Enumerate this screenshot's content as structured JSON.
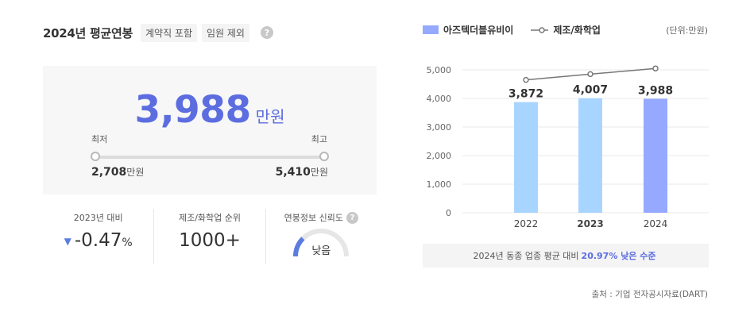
{
  "header": {
    "title": "2024년 평균연봉",
    "tags": [
      "계약직 포함",
      "임원 제외"
    ],
    "help": "?"
  },
  "salary": {
    "average": "3,988",
    "unit": "만원",
    "min_label": "최저",
    "max_label": "최고",
    "min_value": "2,708",
    "max_value": "5,410"
  },
  "stats": {
    "change_label": "2023년 대비",
    "change_value": "-0.47",
    "change_unit": "%",
    "rank_label": "제조/화학업 순위",
    "rank_value": "1000+",
    "reliability_label": "연봉정보 신뢰도",
    "reliability_value": "낮음",
    "reliability_level": 0.25
  },
  "legend": {
    "company": "아즈텍더블유비이",
    "industry": "제조/화학업",
    "unit_note": "(단위:만원)"
  },
  "chart_data": {
    "type": "bar",
    "categories": [
      "2022",
      "2023",
      "2024"
    ],
    "series": [
      {
        "name": "아즈텍더블유비이",
        "values": [
          3872,
          4007,
          3988
        ],
        "labels": [
          "3,872",
          "4,007",
          "3,988"
        ]
      },
      {
        "name": "제조/화학업",
        "type": "line",
        "values": [
          4650,
          4850,
          5050
        ]
      }
    ],
    "yticks": [
      "5,000",
      "4,000",
      "3,000",
      "2,000",
      "1,000",
      "0"
    ],
    "ylim": [
      0,
      5000
    ],
    "highlight_category": "2024",
    "bar_color": "#a8d5ff",
    "highlight_color": "#94a9ff",
    "line_color": "#777777",
    "grid": true
  },
  "compare": {
    "prefix": "2024년 동종 업종 평균 대비",
    "highlight": "20.97% 낮은 수준"
  },
  "source": "출처 : 기업 전자공시자료(DART)"
}
